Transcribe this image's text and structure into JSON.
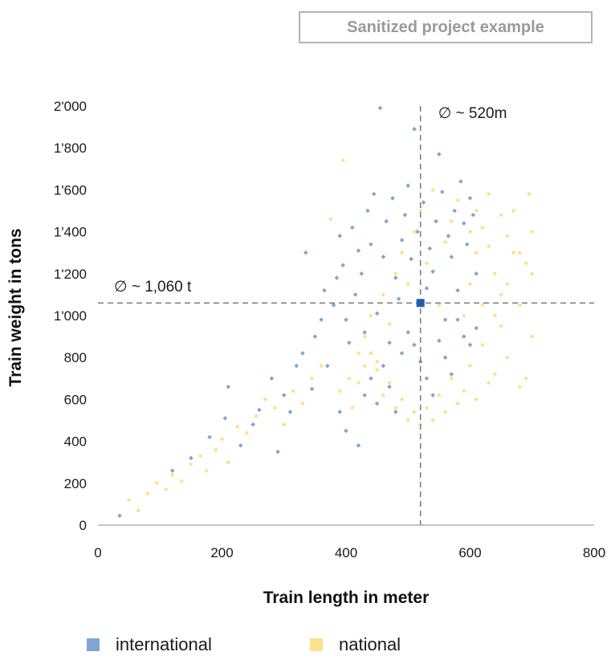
{
  "stamp": "Sanitized project example",
  "chart_data": {
    "type": "scatter",
    "xlabel": "Train length in meter",
    "ylabel": "Train weight in tons",
    "xlim": [
      0,
      800
    ],
    "ylim": [
      0,
      2000
    ],
    "x_ticks": [
      "0",
      "200",
      "400",
      "600",
      "800"
    ],
    "y_ticks": [
      "0",
      "200",
      "400",
      "600",
      "800",
      "1'000",
      "1'200",
      "1'400",
      "1'600",
      "1'800",
      "2'000"
    ],
    "grid": false,
    "legend_position": "bottom",
    "series": [
      {
        "name": "international",
        "color": "#7fa6d4",
        "points": [
          [
            35,
            45
          ],
          [
            120,
            260
          ],
          [
            150,
            320
          ],
          [
            180,
            420
          ],
          [
            205,
            510
          ],
          [
            210,
            660
          ],
          [
            230,
            380
          ],
          [
            250,
            480
          ],
          [
            260,
            550
          ],
          [
            280,
            700
          ],
          [
            290,
            350
          ],
          [
            300,
            620
          ],
          [
            310,
            540
          ],
          [
            320,
            760
          ],
          [
            330,
            820
          ],
          [
            335,
            1300
          ],
          [
            345,
            650
          ],
          [
            350,
            900
          ],
          [
            360,
            980
          ],
          [
            365,
            1120
          ],
          [
            370,
            760
          ],
          [
            380,
            1050
          ],
          [
            385,
            1180
          ],
          [
            390,
            1380
          ],
          [
            395,
            1240
          ],
          [
            400,
            980
          ],
          [
            405,
            870
          ],
          [
            410,
            1420
          ],
          [
            415,
            1100
          ],
          [
            420,
            1310
          ],
          [
            425,
            1200
          ],
          [
            430,
            920
          ],
          [
            435,
            1500
          ],
          [
            440,
            1340
          ],
          [
            445,
            1580
          ],
          [
            450,
            1010
          ],
          [
            455,
            1990
          ],
          [
            460,
            1280
          ],
          [
            465,
            1450
          ],
          [
            470,
            870
          ],
          [
            475,
            1560
          ],
          [
            480,
            1180
          ],
          [
            485,
            1080
          ],
          [
            490,
            1360
          ],
          [
            495,
            1480
          ],
          [
            500,
            1620
          ],
          [
            505,
            1270
          ],
          [
            510,
            1890
          ],
          [
            515,
            1400
          ],
          [
            520,
            1060
          ],
          [
            525,
            1540
          ],
          [
            530,
            1130
          ],
          [
            535,
            1320
          ],
          [
            540,
            1210
          ],
          [
            545,
            1450
          ],
          [
            550,
            1770
          ],
          [
            555,
            1590
          ],
          [
            560,
            980
          ],
          [
            565,
            1380
          ],
          [
            570,
            1280
          ],
          [
            575,
            1500
          ],
          [
            580,
            1120
          ],
          [
            585,
            1640
          ],
          [
            590,
            1440
          ],
          [
            595,
            1340
          ],
          [
            600,
            1560
          ],
          [
            605,
            1480
          ],
          [
            610,
            1200
          ],
          [
            390,
            540
          ],
          [
            400,
            450
          ],
          [
            420,
            380
          ],
          [
            430,
            620
          ],
          [
            440,
            700
          ],
          [
            450,
            580
          ],
          [
            460,
            760
          ],
          [
            470,
            660
          ],
          [
            480,
            540
          ],
          [
            490,
            820
          ],
          [
            500,
            920
          ],
          [
            510,
            860
          ],
          [
            520,
            780
          ],
          [
            530,
            700
          ],
          [
            540,
            620
          ],
          [
            550,
            880
          ],
          [
            560,
            800
          ],
          [
            570,
            720
          ],
          [
            580,
            980
          ],
          [
            590,
            900
          ],
          [
            600,
            860
          ],
          [
            610,
            940
          ]
        ]
      },
      {
        "name": "national",
        "color": "#fce28c",
        "points": [
          [
            50,
            120
          ],
          [
            65,
            70
          ],
          [
            80,
            150
          ],
          [
            95,
            200
          ],
          [
            110,
            170
          ],
          [
            120,
            240
          ],
          [
            135,
            210
          ],
          [
            150,
            290
          ],
          [
            165,
            330
          ],
          [
            175,
            260
          ],
          [
            190,
            360
          ],
          [
            200,
            410
          ],
          [
            210,
            300
          ],
          [
            225,
            470
          ],
          [
            240,
            440
          ],
          [
            255,
            520
          ],
          [
            270,
            600
          ],
          [
            285,
            560
          ],
          [
            300,
            480
          ],
          [
            315,
            640
          ],
          [
            330,
            580
          ],
          [
            345,
            700
          ],
          [
            360,
            760
          ],
          [
            375,
            1460
          ],
          [
            390,
            640
          ],
          [
            395,
            1740
          ],
          [
            405,
            700
          ],
          [
            420,
            820
          ],
          [
            430,
            900
          ],
          [
            440,
            1000
          ],
          [
            450,
            780
          ],
          [
            460,
            1100
          ],
          [
            470,
            960
          ],
          [
            480,
            1200
          ],
          [
            490,
            1300
          ],
          [
            500,
            1150
          ],
          [
            510,
            1400
          ],
          [
            520,
            1500
          ],
          [
            530,
            1250
          ],
          [
            540,
            1600
          ],
          [
            550,
            1050
          ],
          [
            560,
            1350
          ],
          [
            570,
            1450
          ],
          [
            580,
            1550
          ],
          [
            590,
            1000
          ],
          [
            600,
            1150
          ],
          [
            610,
            1300
          ],
          [
            620,
            1420
          ],
          [
            630,
            1580
          ],
          [
            640,
            1200
          ],
          [
            650,
            1100
          ],
          [
            660,
            1380
          ],
          [
            670,
            1500
          ],
          [
            680,
            1050
          ],
          [
            690,
            1250
          ],
          [
            695,
            1580
          ],
          [
            700,
            900
          ],
          [
            700,
            1400
          ],
          [
            690,
            700
          ],
          [
            680,
            660
          ],
          [
            660,
            800
          ],
          [
            650,
            950
          ],
          [
            640,
            720
          ],
          [
            630,
            680
          ],
          [
            620,
            860
          ],
          [
            610,
            600
          ],
          [
            600,
            760
          ],
          [
            590,
            640
          ],
          [
            580,
            580
          ],
          [
            570,
            700
          ],
          [
            560,
            540
          ],
          [
            550,
            620
          ],
          [
            540,
            500
          ],
          [
            530,
            560
          ],
          [
            520,
            480
          ],
          [
            510,
            540
          ],
          [
            500,
            500
          ],
          [
            490,
            600
          ],
          [
            480,
            560
          ],
          [
            470,
            680
          ],
          [
            460,
            620
          ],
          [
            450,
            740
          ],
          [
            440,
            820
          ],
          [
            430,
            760
          ],
          [
            420,
            680
          ],
          [
            410,
            560
          ],
          [
            620,
            1050
          ],
          [
            640,
            1000
          ],
          [
            660,
            1150
          ],
          [
            680,
            1300
          ],
          [
            700,
            1200
          ],
          [
            670,
            1300
          ],
          [
            650,
            1480
          ],
          [
            630,
            1330
          ],
          [
            610,
            1500
          ],
          [
            600,
            1400
          ]
        ]
      }
    ],
    "averages": {
      "x": 520,
      "y": 1060,
      "x_label": "∅ ~ 520m",
      "y_label": "∅ ~ 1,060 t"
    }
  }
}
